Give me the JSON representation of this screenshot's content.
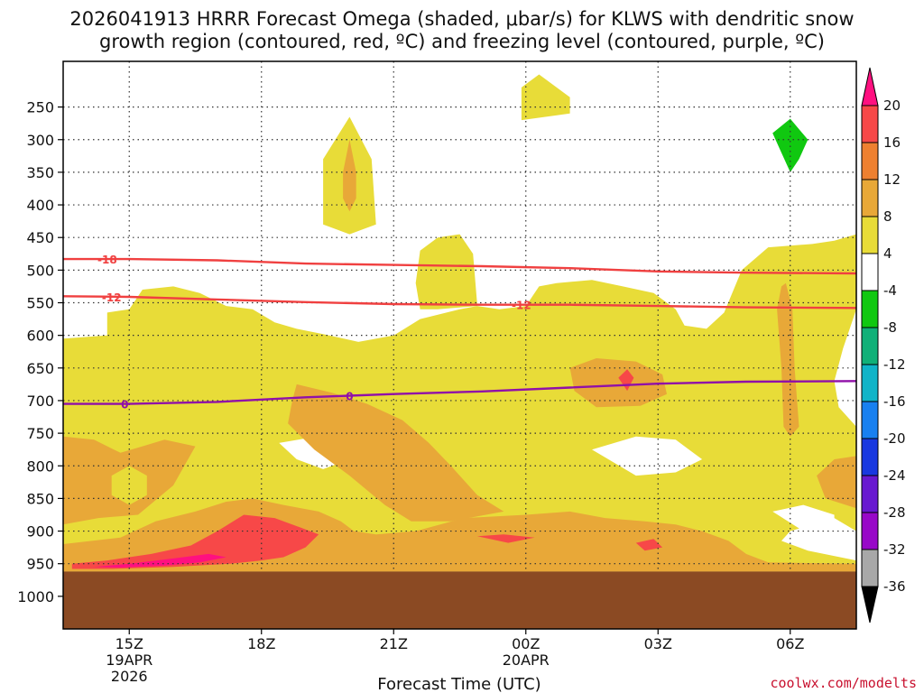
{
  "chart_data": {
    "type": "contourf-time-height",
    "title_line1": "2026041913 HRRR Forecast Omega (shaded, μbar/s) for KLWS with dendritic snow",
    "title_line2": "growth region (contoured, red, ºC) and freezing level (contoured, purple, ºC)",
    "xlabel": "Forecast Time (UTC)",
    "ylabel": "",
    "xlim": [
      13.5,
      31.5
    ],
    "ylim": [
      1050,
      180
    ],
    "x_ticks": [
      {
        "t": 15,
        "line1": "15Z",
        "line2": "19APR",
        "line3": "2026"
      },
      {
        "t": 18,
        "line1": "18Z",
        "line2": "",
        "line3": ""
      },
      {
        "t": 21,
        "line1": "21Z",
        "line2": "",
        "line3": ""
      },
      {
        "t": 24,
        "line1": "00Z",
        "line2": "20APR",
        "line3": ""
      },
      {
        "t": 27,
        "line1": "03Z",
        "line2": "",
        "line3": ""
      },
      {
        "t": 30,
        "line1": "06Z",
        "line2": "",
        "line3": ""
      }
    ],
    "y_ticks": [
      250,
      300,
      350,
      400,
      450,
      500,
      550,
      600,
      650,
      700,
      750,
      800,
      850,
      900,
      950,
      1000
    ],
    "ground_pressure": 962,
    "colorbar": {
      "levels": [
        20,
        16,
        12,
        8,
        4,
        -4,
        -8,
        -12,
        -16,
        -20,
        -24,
        -28,
        -32,
        -36
      ],
      "colors": [
        "#ff1080",
        "#f74848",
        "#ee8030",
        "#e8a838",
        "#e8dc38",
        "#ffffff",
        "#10c810",
        "#10b078",
        "#10b4c8",
        "#1880f0",
        "#1838e0",
        "#6818d0",
        "#9808c8",
        "#a8a8a8",
        "#000000"
      ]
    },
    "shading_regions": [
      {
        "label": "yellow-250mb",
        "color": "#e8dc38",
        "pts": [
          [
            23.9,
            220
          ],
          [
            24.3,
            200
          ],
          [
            25.0,
            235
          ],
          [
            25.0,
            260
          ],
          [
            23.9,
            270
          ]
        ]
      },
      {
        "label": "yellow-300mb",
        "color": "#e8dc38",
        "pts": [
          [
            20.0,
            265
          ],
          [
            20.5,
            330
          ],
          [
            20.6,
            430
          ],
          [
            20.0,
            445
          ],
          [
            19.4,
            430
          ],
          [
            19.4,
            330
          ]
        ]
      },
      {
        "label": "orange-350mb",
        "color": "#e8a838",
        "pts": [
          [
            20.0,
            300
          ],
          [
            20.15,
            350
          ],
          [
            20.15,
            390
          ],
          [
            20.0,
            410
          ],
          [
            19.85,
            390
          ],
          [
            19.85,
            350
          ]
        ]
      },
      {
        "label": "green-300mb",
        "color": "#10c810",
        "pts": [
          [
            30.0,
            268
          ],
          [
            30.4,
            300
          ],
          [
            30.2,
            330
          ],
          [
            30.0,
            350
          ],
          [
            29.8,
            320
          ],
          [
            29.6,
            290
          ]
        ]
      },
      {
        "label": "yellow-main",
        "color": "#e8dc38",
        "pts": [
          [
            13.5,
            605
          ],
          [
            14.5,
            600
          ],
          [
            14.5,
            565
          ],
          [
            15.0,
            560
          ],
          [
            15.3,
            530
          ],
          [
            16.0,
            525
          ],
          [
            16.6,
            535
          ],
          [
            17.2,
            555
          ],
          [
            17.8,
            560
          ],
          [
            18.3,
            580
          ],
          [
            18.8,
            590
          ],
          [
            19.4,
            598
          ],
          [
            20.2,
            610
          ],
          [
            21.0,
            600
          ],
          [
            21.6,
            575
          ],
          [
            22.5,
            560
          ],
          [
            22.9,
            555
          ],
          [
            23.4,
            560
          ],
          [
            24.0,
            555
          ],
          [
            24.3,
            525
          ],
          [
            24.7,
            520
          ],
          [
            25.5,
            515
          ],
          [
            26.2,
            525
          ],
          [
            26.9,
            535
          ],
          [
            27.4,
            560
          ],
          [
            27.6,
            585
          ],
          [
            28.1,
            590
          ],
          [
            28.5,
            565
          ],
          [
            28.9,
            500
          ],
          [
            29.5,
            465
          ],
          [
            30.5,
            460
          ],
          [
            31.0,
            455
          ],
          [
            31.5,
            445
          ],
          [
            31.5,
            700
          ],
          [
            31.3,
            720
          ],
          [
            31.5,
            740
          ],
          [
            31.5,
            900
          ],
          [
            31.0,
            880
          ],
          [
            30.0,
            900
          ],
          [
            29.8,
            915
          ],
          [
            30.4,
            930
          ],
          [
            31.5,
            945
          ],
          [
            31.5,
            962
          ],
          [
            13.5,
            962
          ]
        ]
      },
      {
        "label": "yellow-upper-blob",
        "color": "#e8dc38",
        "pts": [
          [
            21.5,
            520
          ],
          [
            21.6,
            470
          ],
          [
            22.0,
            450
          ],
          [
            22.5,
            445
          ],
          [
            22.8,
            475
          ],
          [
            22.9,
            555
          ],
          [
            22.0,
            560
          ],
          [
            21.6,
            560
          ]
        ]
      },
      {
        "label": "white-hole-1",
        "color": "#ffffff",
        "pts": [
          [
            18.4,
            765
          ],
          [
            19.0,
            758
          ],
          [
            19.7,
            768
          ],
          [
            20.0,
            790
          ],
          [
            19.4,
            805
          ],
          [
            18.8,
            790
          ]
        ]
      },
      {
        "label": "white-hole-2",
        "color": "#ffffff",
        "pts": [
          [
            25.5,
            775
          ],
          [
            26.5,
            755
          ],
          [
            27.4,
            760
          ],
          [
            28.0,
            790
          ],
          [
            27.4,
            810
          ],
          [
            26.5,
            815
          ]
        ]
      },
      {
        "label": "white-hole-3",
        "color": "#ffffff",
        "pts": [
          [
            29.6,
            870
          ],
          [
            30.3,
            860
          ],
          [
            31.0,
            875
          ],
          [
            31.0,
            895
          ],
          [
            30.3,
            900
          ]
        ]
      },
      {
        "label": "orange-lowest",
        "color": "#e8a838",
        "pts": [
          [
            13.5,
            755
          ],
          [
            14.2,
            760
          ],
          [
            14.8,
            780
          ],
          [
            15.3,
            770
          ],
          [
            15.8,
            760
          ],
          [
            16.5,
            770
          ],
          [
            16.0,
            830
          ],
          [
            15.2,
            875
          ],
          [
            14.3,
            880
          ],
          [
            13.5,
            890
          ]
        ]
      },
      {
        "label": "orange-low-band",
        "color": "#e8a838",
        "pts": [
          [
            13.5,
            920
          ],
          [
            14.8,
            910
          ],
          [
            15.6,
            885
          ],
          [
            16.5,
            870
          ],
          [
            17.2,
            855
          ],
          [
            17.8,
            850
          ],
          [
            18.5,
            860
          ],
          [
            19.3,
            870
          ],
          [
            19.8,
            885
          ],
          [
            20.1,
            900
          ],
          [
            20.6,
            905
          ],
          [
            21.5,
            900
          ],
          [
            22.6,
            880
          ],
          [
            24.0,
            875
          ],
          [
            25.0,
            870
          ],
          [
            25.8,
            880
          ],
          [
            26.7,
            885
          ],
          [
            27.4,
            890
          ],
          [
            28.0,
            900
          ],
          [
            28.6,
            915
          ],
          [
            29.0,
            935
          ],
          [
            29.5,
            948
          ],
          [
            31.5,
            950
          ],
          [
            31.5,
            962
          ],
          [
            13.5,
            962
          ]
        ]
      },
      {
        "label": "orange-diagonal",
        "color": "#e8a838",
        "pts": [
          [
            18.8,
            675
          ],
          [
            19.6,
            688
          ],
          [
            20.4,
            705
          ],
          [
            21.2,
            730
          ],
          [
            21.8,
            765
          ],
          [
            22.3,
            800
          ],
          [
            22.9,
            845
          ],
          [
            23.5,
            870
          ],
          [
            22.3,
            885
          ],
          [
            21.4,
            885
          ],
          [
            20.8,
            860
          ],
          [
            20.0,
            815
          ],
          [
            19.2,
            775
          ],
          [
            18.6,
            735
          ],
          [
            18.7,
            700
          ]
        ]
      },
      {
        "label": "orange-mid-right",
        "color": "#e8a838",
        "pts": [
          [
            25.0,
            650
          ],
          [
            25.6,
            635
          ],
          [
            26.5,
            640
          ],
          [
            27.1,
            660
          ],
          [
            27.2,
            690
          ],
          [
            26.6,
            708
          ],
          [
            25.6,
            710
          ],
          [
            25.1,
            685
          ]
        ]
      },
      {
        "label": "orange-spike",
        "color": "#e8a838",
        "pts": [
          [
            29.7,
            560
          ],
          [
            29.8,
            525
          ],
          [
            29.9,
            520
          ],
          [
            30.05,
            560
          ],
          [
            30.1,
            650
          ],
          [
            30.2,
            740
          ],
          [
            30.0,
            755
          ],
          [
            29.85,
            740
          ],
          [
            29.8,
            650
          ]
        ]
      },
      {
        "label": "orange-right-edge",
        "color": "#e8a838",
        "pts": [
          [
            31.5,
            785
          ],
          [
            31.0,
            790
          ],
          [
            30.6,
            815
          ],
          [
            30.8,
            850
          ],
          [
            31.5,
            865
          ]
        ]
      },
      {
        "label": "orange-white-right",
        "color": "#ffffff",
        "pts": [
          [
            31.5,
            560
          ],
          [
            31.2,
            620
          ],
          [
            31.0,
            670
          ],
          [
            31.1,
            710
          ],
          [
            31.5,
            740
          ]
        ]
      },
      {
        "label": "orange-left-bubble",
        "color": "#e8dc38",
        "pts": [
          [
            14.6,
            815
          ],
          [
            15.0,
            800
          ],
          [
            15.4,
            815
          ],
          [
            15.4,
            845
          ],
          [
            15.0,
            860
          ],
          [
            14.6,
            845
          ]
        ]
      },
      {
        "label": "red-low",
        "color": "#f74848",
        "pts": [
          [
            13.7,
            950
          ],
          [
            14.5,
            945
          ],
          [
            15.5,
            935
          ],
          [
            16.4,
            922
          ],
          [
            17.0,
            900
          ],
          [
            17.6,
            875
          ],
          [
            18.3,
            880
          ],
          [
            18.9,
            895
          ],
          [
            19.3,
            905
          ],
          [
            19.0,
            925
          ],
          [
            18.5,
            940
          ],
          [
            18.0,
            945
          ],
          [
            17.3,
            950
          ],
          [
            16.0,
            955
          ],
          [
            14.6,
            958
          ],
          [
            13.7,
            958
          ]
        ]
      },
      {
        "label": "magenta-low",
        "color": "#ff1080",
        "pts": [
          [
            14.2,
            955
          ],
          [
            15.0,
            950
          ],
          [
            16.0,
            942
          ],
          [
            16.8,
            935
          ],
          [
            17.2,
            940
          ],
          [
            16.6,
            948
          ],
          [
            15.8,
            953
          ],
          [
            14.8,
            956
          ]
        ]
      },
      {
        "label": "red-spot-mid",
        "color": "#f74848",
        "pts": [
          [
            26.1,
            665
          ],
          [
            26.3,
            652
          ],
          [
            26.45,
            665
          ],
          [
            26.3,
            685
          ]
        ]
      },
      {
        "label": "orange-20z-low",
        "color": "#e8a838",
        "pts": [
          [
            22.5,
            905
          ],
          [
            23.3,
            895
          ],
          [
            24.5,
            900
          ],
          [
            25.0,
            915
          ],
          [
            24.0,
            930
          ],
          [
            22.8,
            925
          ]
        ]
      },
      {
        "label": "red-20z-low",
        "color": "#f74848",
        "pts": [
          [
            22.9,
            908
          ],
          [
            23.5,
            905
          ],
          [
            24.2,
            910
          ],
          [
            23.6,
            918
          ]
        ]
      },
      {
        "label": "red-03z-low",
        "color": "#f74848",
        "pts": [
          [
            26.5,
            918
          ],
          [
            26.9,
            912
          ],
          [
            27.1,
            925
          ],
          [
            26.7,
            930
          ]
        ]
      }
    ],
    "contours": [
      {
        "name": "dgz-minus18",
        "color": "#f04040",
        "label": "-18",
        "label_at": 14.5,
        "points": [
          [
            13.5,
            483
          ],
          [
            15,
            483
          ],
          [
            17,
            485
          ],
          [
            19,
            490
          ],
          [
            21,
            492
          ],
          [
            23,
            494
          ],
          [
            25,
            497
          ],
          [
            27,
            502
          ],
          [
            29,
            504
          ],
          [
            31.5,
            505
          ]
        ]
      },
      {
        "name": "dgz-minus12",
        "color": "#f04040",
        "label": "-12",
        "label_at": 14.6,
        "label2": "-12",
        "label2_at": 23.9,
        "points": [
          [
            13.5,
            540
          ],
          [
            15,
            541
          ],
          [
            17,
            545
          ],
          [
            19,
            549
          ],
          [
            21,
            552
          ],
          [
            23,
            553
          ],
          [
            25,
            553
          ],
          [
            27,
            555
          ],
          [
            29,
            557
          ],
          [
            31.5,
            558
          ]
        ]
      },
      {
        "name": "freezing-level-0",
        "color": "#9010a8",
        "label": "0",
        "label_at": 14.9,
        "label2": "0",
        "label2_at": 20.0,
        "points": [
          [
            13.5,
            705
          ],
          [
            15,
            705
          ],
          [
            17,
            702
          ],
          [
            19,
            695
          ],
          [
            21,
            690
          ],
          [
            23,
            686
          ],
          [
            25,
            680
          ],
          [
            27,
            674
          ],
          [
            29,
            671
          ],
          [
            31.5,
            670
          ]
        ]
      }
    ]
  },
  "credit": "coolwx.com/modelts"
}
